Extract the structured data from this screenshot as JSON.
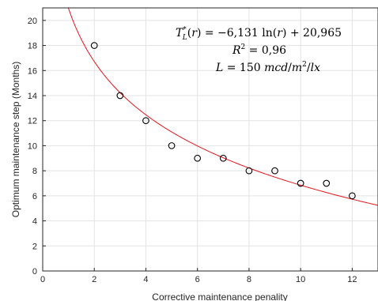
{
  "chart_data": {
    "type": "scatter",
    "title": "",
    "xlabel": "Corrective maintenance penality",
    "ylabel": "Optimum maintenance step (Months)",
    "xlim": [
      0,
      13
    ],
    "ylim": [
      0,
      21
    ],
    "xticks": [
      0,
      2,
      4,
      6,
      8,
      10,
      12
    ],
    "yticks": [
      0,
      2,
      4,
      6,
      8,
      10,
      12,
      14,
      16,
      18,
      20
    ],
    "grid": true,
    "series": [
      {
        "kind": "points",
        "marker": "circle-open",
        "color": "#000000",
        "x": [
          2,
          3,
          4,
          5,
          6,
          7,
          8,
          9,
          10,
          11,
          12
        ],
        "y": [
          18,
          14,
          12,
          10,
          9,
          9,
          8,
          8,
          7,
          7,
          6
        ]
      },
      {
        "kind": "fit",
        "color": "#e8161e",
        "formula": "y = -6.131*ln(x) + 20.965",
        "a": -6.131,
        "b": 20.965,
        "x_start": 1,
        "x_end": 13
      }
    ],
    "annotations": [
      "T*L(r) = −6,131 ln(r) + 20,965",
      "R² = 0,96",
      "L = 150 mcd/m²/lx"
    ]
  }
}
